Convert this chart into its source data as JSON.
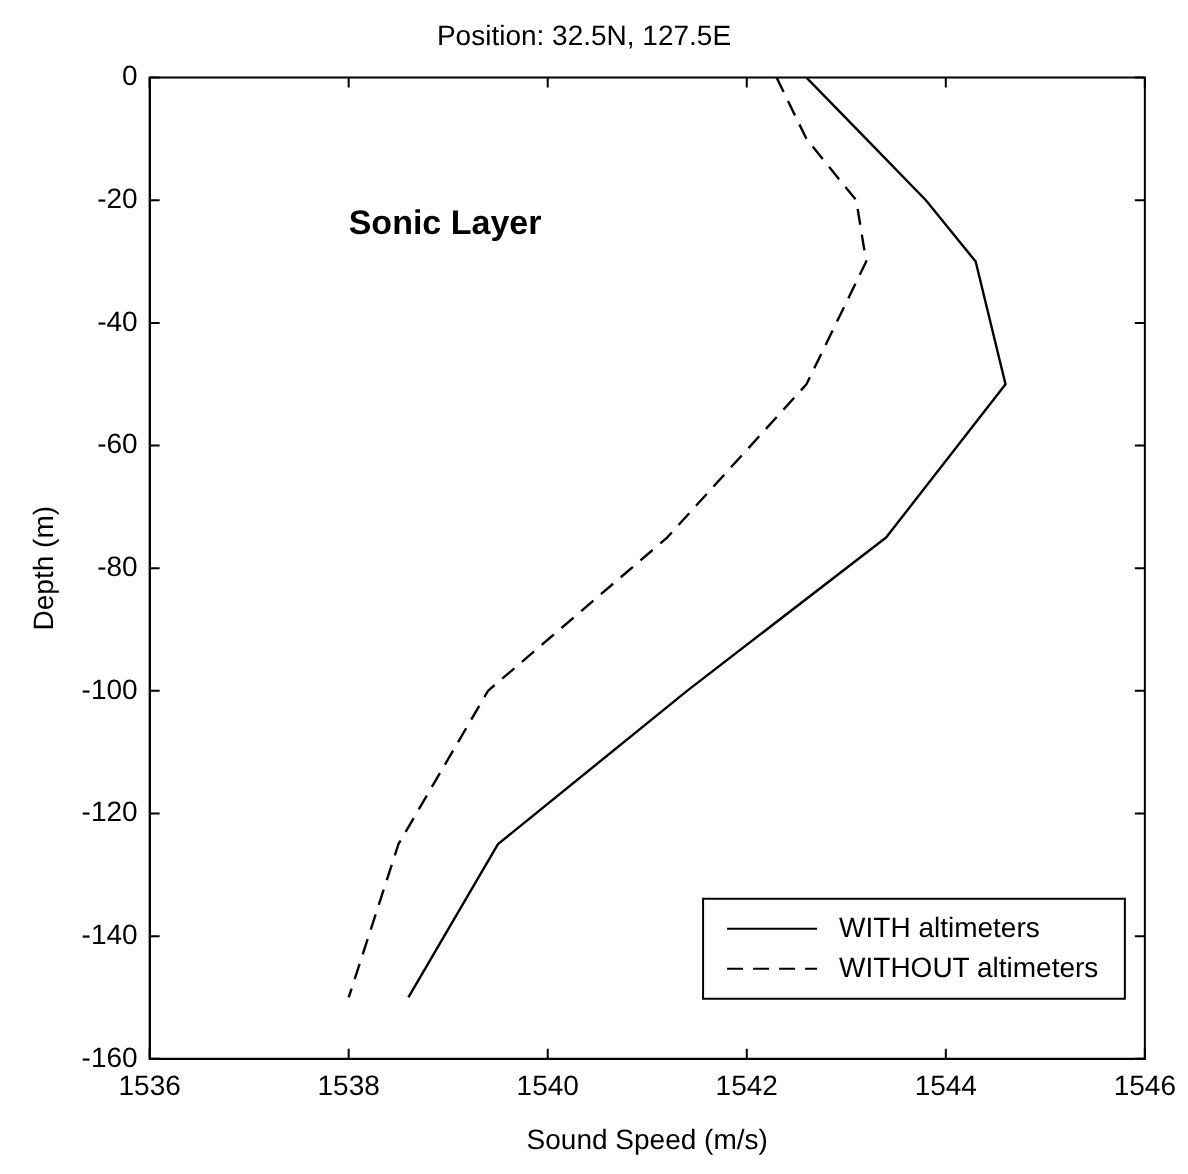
{
  "chart_data": {
    "type": "line",
    "title": "Position: 32.5N, 127.5E",
    "xlabel": "Sound Speed (m/s)",
    "ylabel": "Depth (m)",
    "xlim": [
      1536,
      1546
    ],
    "xticks": [
      1536,
      1538,
      1540,
      1542,
      1544,
      1546
    ],
    "ylim": [
      -160,
      0
    ],
    "yticks": [
      -160,
      -140,
      -120,
      -100,
      -80,
      -60,
      -40,
      -20,
      0
    ],
    "grid": false,
    "legend": "bottom right",
    "marker": "none",
    "annotations": [
      "Sonic Layer"
    ],
    "series": [
      {
        "name": "WITH altimeters",
        "color": "#000000",
        "line_style": "solid",
        "x": [
          1542.6,
          1543.2,
          1543.8,
          1544.3,
          1544.6,
          1543.4,
          1541.4,
          1539.5,
          1538.6
        ],
        "values": [
          0,
          -10,
          -20,
          -30,
          -50,
          -75,
          -100,
          -125,
          -150
        ]
      },
      {
        "name": "WITHOUT altimeters",
        "color": "#000000",
        "line_style": "dashed",
        "x": [
          1542.3,
          1542.6,
          1543.1,
          1543.2,
          1542.6,
          1541.2,
          1539.4,
          1538.5,
          1538.0
        ],
        "values": [
          0,
          -10,
          -20,
          -30,
          -50,
          -75,
          -100,
          -125,
          -150
        ]
      }
    ]
  }
}
